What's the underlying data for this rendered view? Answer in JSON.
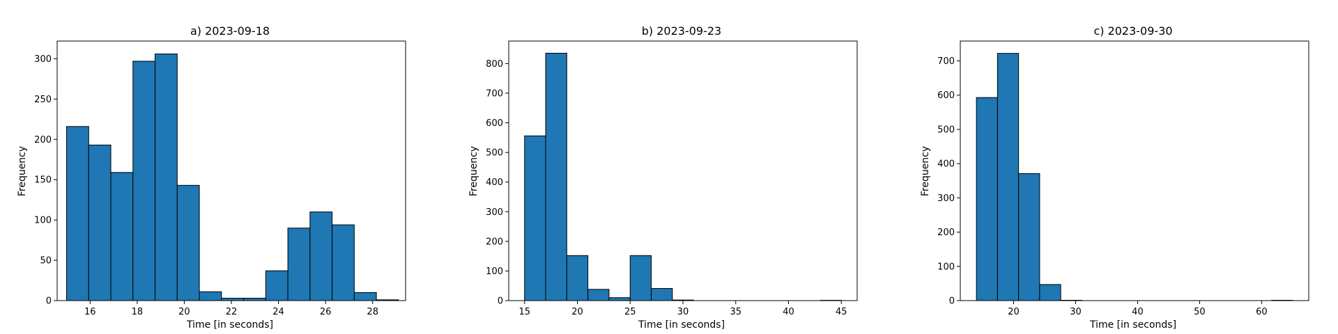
{
  "chart_data": [
    {
      "type": "bar",
      "title": "a) 2023-09-18",
      "xlabel": "Time [in seconds]",
      "ylabel": "Frequency",
      "xlim": [
        14.6,
        29.4
      ],
      "ylim": [
        0,
        322
      ],
      "xticks": [
        16,
        18,
        20,
        22,
        24,
        26,
        28
      ],
      "yticks": [
        0,
        50,
        100,
        150,
        200,
        250,
        300
      ],
      "bin_edges": [
        15.0,
        15.94,
        16.88,
        17.82,
        18.76,
        19.7,
        20.64,
        21.58,
        22.52,
        23.46,
        24.4,
        25.34,
        26.28,
        27.22,
        28.16,
        29.1
      ],
      "values": [
        216,
        193,
        159,
        297,
        306,
        143,
        11,
        3,
        3,
        37,
        90,
        110,
        94,
        10,
        1
      ],
      "bar_color": "#1f77b4",
      "edge_color": "#000000",
      "grid": false
    },
    {
      "type": "bar",
      "title": "b) 2023-09-23",
      "xlabel": "Time [in seconds]",
      "ylabel": "Frequency",
      "xlim": [
        13.5,
        46.5
      ],
      "ylim": [
        0,
        876
      ],
      "xticks": [
        15,
        20,
        25,
        30,
        35,
        40,
        45
      ],
      "yticks": [
        0,
        100,
        200,
        300,
        400,
        500,
        600,
        700,
        800
      ],
      "bin_edges": [
        15.0,
        17.0,
        19.0,
        21.0,
        23.0,
        25.0,
        27.0,
        29.0,
        31.0,
        33.0,
        35.0,
        37.0,
        39.0,
        41.0,
        43.0,
        45.0
      ],
      "values": [
        556,
        835,
        152,
        38,
        10,
        152,
        41,
        2,
        0,
        0,
        0,
        0,
        0,
        0,
        1
      ],
      "bar_color": "#1f77b4",
      "edge_color": "#000000",
      "grid": false
    },
    {
      "type": "bar",
      "title": "c) 2023-09-30",
      "xlabel": "Time [in seconds]",
      "ylabel": "Frequency",
      "xlim": [
        11.4,
        67.6
      ],
      "ylim": [
        0,
        758
      ],
      "xticks": [
        20,
        30,
        40,
        50,
        60
      ],
      "yticks": [
        0,
        100,
        200,
        300,
        400,
        500,
        600,
        700
      ],
      "bin_edges": [
        14.0,
        17.4,
        20.8,
        24.2,
        27.6,
        31.0,
        34.4,
        37.8,
        41.2,
        44.6,
        48.0,
        51.4,
        54.8,
        58.2,
        61.6,
        65.0
      ],
      "values": [
        593,
        722,
        371,
        47,
        1,
        0,
        0,
        0,
        0,
        0,
        0,
        0,
        0,
        0,
        1
      ],
      "bar_color": "#1f77b4",
      "edge_color": "#000000",
      "grid": false
    }
  ]
}
